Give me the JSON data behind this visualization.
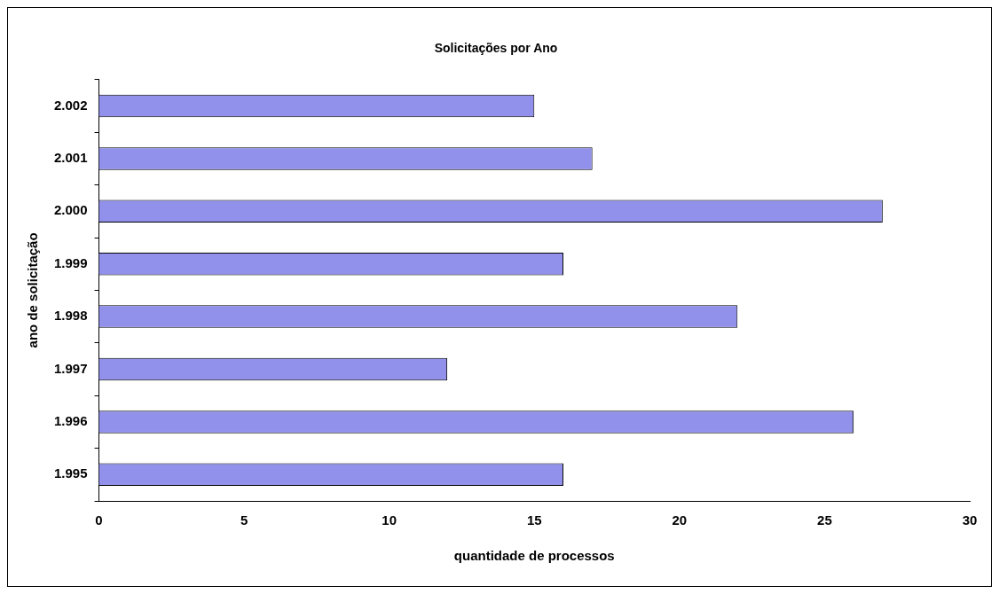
{
  "chart_data": {
    "type": "bar",
    "orientation": "horizontal",
    "title": "Solicitações por Ano",
    "xlabel": "quantidade de processos",
    "ylabel": "ano de solicitação",
    "categories": [
      "2.002",
      "2.001",
      "2.000",
      "1.999",
      "1.998",
      "1.997",
      "1.996",
      "1.995"
    ],
    "values": [
      15,
      17,
      27,
      16,
      22,
      12,
      26,
      16
    ],
    "color": "#9191ec",
    "xlim": [
      0,
      30
    ],
    "xticks": [
      0,
      5,
      10,
      15,
      20,
      25,
      30
    ],
    "grid": false,
    "legend": false
  }
}
